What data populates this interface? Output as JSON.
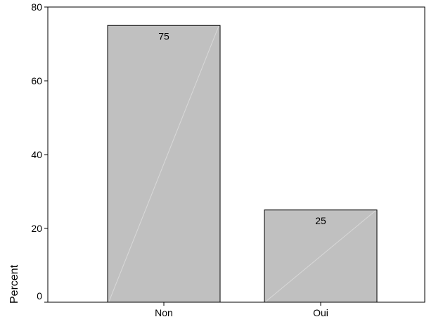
{
  "chart_data": {
    "type": "bar",
    "categories": [
      "Non",
      "Oui"
    ],
    "values": [
      75,
      25
    ],
    "data_labels": [
      "75",
      "25"
    ],
    "title": "",
    "xlabel": "",
    "ylabel": "Percent",
    "ylim": [
      0,
      80
    ],
    "yticks": [
      0,
      20,
      40,
      60,
      80
    ],
    "grid": false,
    "legend": "none",
    "colors": {
      "bar_fill": "#c0c0c0",
      "bar_stroke": "#000000",
      "bar_diagonal": "#d8d8d8",
      "axis": "#000000",
      "background": "#ffffff"
    }
  }
}
